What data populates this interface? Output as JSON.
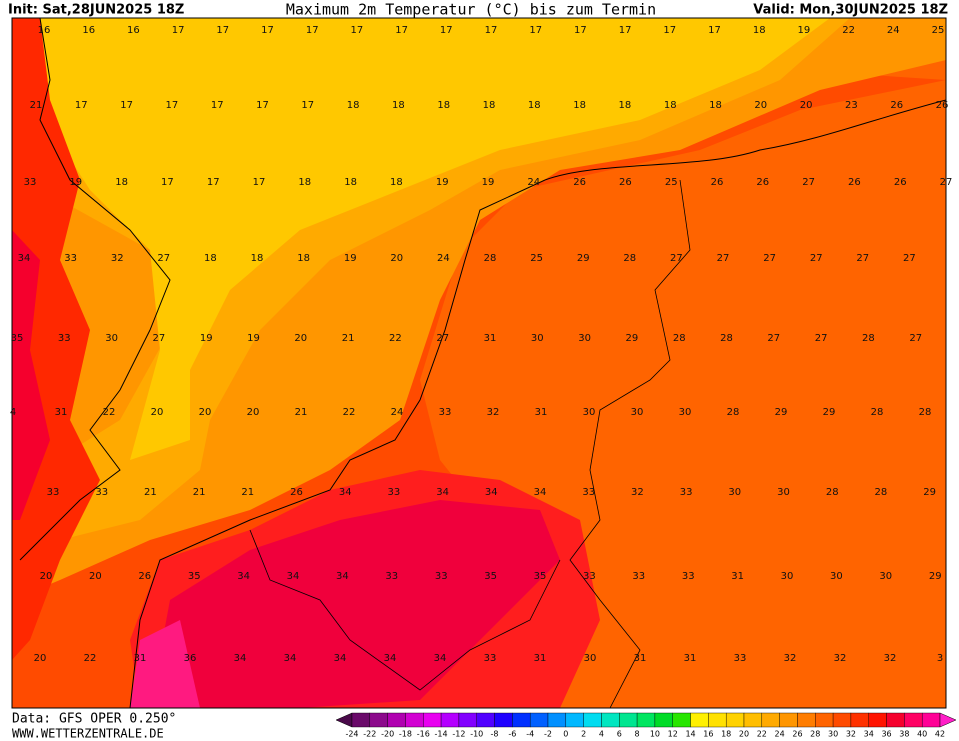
{
  "header": {
    "init": "Init: Sat,28JUN2025 18Z",
    "title": "Maximum 2m Temperatur (°C) bis zum Termin",
    "valid": "Valid: Mon,30JUN2025 18Z"
  },
  "map": {
    "rows": [
      [
        16,
        16,
        16,
        17,
        17,
        17,
        17,
        17,
        17,
        17,
        17,
        17,
        17,
        17,
        17,
        17,
        18,
        19,
        22,
        24,
        25
      ],
      [
        21,
        17,
        17,
        17,
        17,
        17,
        17,
        18,
        18,
        18,
        18,
        18,
        18,
        18,
        18,
        18,
        20,
        20,
        23,
        26,
        26
      ],
      [
        33,
        19,
        18,
        17,
        17,
        17,
        18,
        18,
        18,
        19,
        19,
        24,
        26,
        26,
        25,
        26,
        26,
        27,
        26,
        26,
        27
      ],
      [
        34,
        33,
        32,
        27,
        18,
        18,
        18,
        19,
        20,
        24,
        28,
        25,
        29,
        28,
        27,
        27,
        27,
        27,
        27,
        27
      ],
      [
        35,
        33,
        30,
        27,
        19,
        19,
        20,
        21,
        22,
        27,
        31,
        30,
        30,
        29,
        28,
        28,
        27,
        27,
        28,
        27
      ],
      [
        4,
        31,
        22,
        20,
        20,
        20,
        21,
        22,
        24,
        33,
        32,
        31,
        30,
        30,
        30,
        28,
        29,
        29,
        28,
        28
      ],
      [
        33,
        33,
        21,
        21,
        21,
        26,
        34,
        33,
        34,
        34,
        34,
        33,
        32,
        33,
        30,
        30,
        28,
        28,
        29
      ],
      [
        20,
        20,
        26,
        35,
        34,
        34,
        34,
        33,
        33,
        35,
        35,
        33,
        33,
        33,
        31,
        30,
        30,
        30,
        29
      ],
      [
        20,
        22,
        31,
        36,
        34,
        34,
        34,
        34,
        34,
        33,
        31,
        30,
        31,
        31,
        33,
        32,
        32,
        32,
        3
      ]
    ]
  },
  "footer": {
    "data": "Data: GFS OPER 0.250°",
    "site": "WWW.WETTERZENTRALE.DE"
  },
  "legend": {
    "labels": [
      -24,
      -22,
      -20,
      -18,
      -16,
      -14,
      -12,
      -10,
      -8,
      -6,
      -4,
      -2,
      0,
      2,
      4,
      6,
      8,
      10,
      12,
      14,
      16,
      18,
      20,
      22,
      24,
      26,
      28,
      30,
      32,
      34,
      36,
      38,
      40,
      42
    ],
    "colors": [
      "#4a0a4a",
      "#6a0a6a",
      "#8c0a8c",
      "#b000b0",
      "#d200d2",
      "#e800f0",
      "#b400ff",
      "#8200ff",
      "#5000ff",
      "#1e00ff",
      "#0030ff",
      "#0060ff",
      "#0090ff",
      "#00b8ff",
      "#00dcf0",
      "#00e6c0",
      "#00e690",
      "#00e660",
      "#00dc28",
      "#28e600",
      "#fff000",
      "#ffe100",
      "#ffd200",
      "#ffbe00",
      "#ffaa00",
      "#ff9600",
      "#ff7d00",
      "#ff6400",
      "#ff4b00",
      "#ff3200",
      "#ff1400",
      "#f5002d",
      "#ff0064",
      "#ff0096",
      "#ff1ec8"
    ]
  }
}
